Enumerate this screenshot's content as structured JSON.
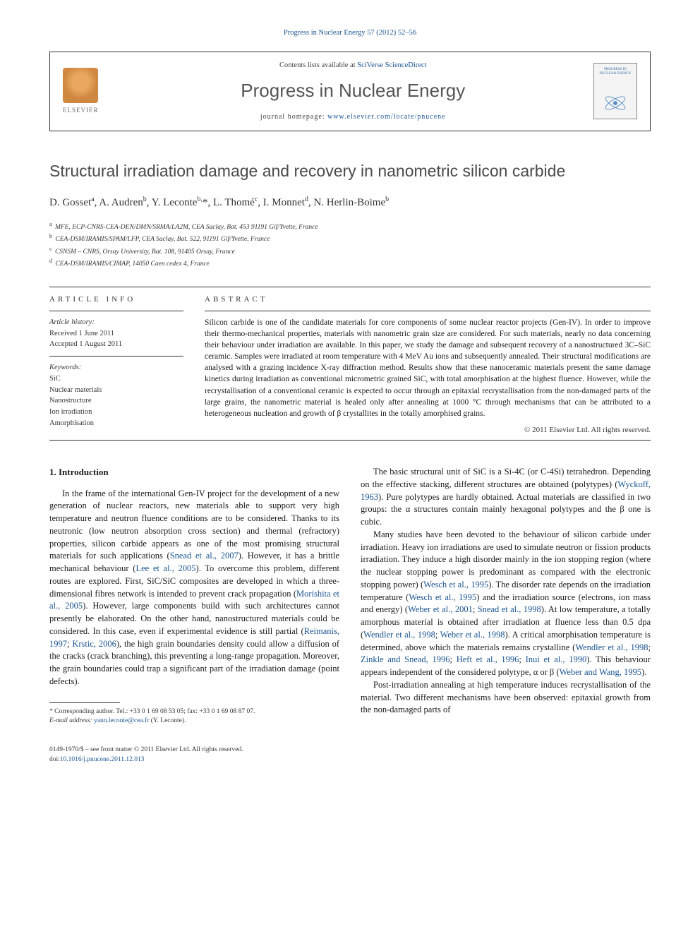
{
  "citation": "Progress in Nuclear Energy 57 (2012) 52–56",
  "header": {
    "publisher": "ELSEVIER",
    "contents_prefix": "Contents lists available at ",
    "contents_link": "SciVerse ScienceDirect",
    "journal": "Progress in Nuclear Energy",
    "homepage_prefix": "journal homepage: ",
    "homepage_url": "www.elsevier.com/locate/pnucene",
    "cover_title": "PROGRESS IN NUCLEAR ENERGY"
  },
  "title": "Structural irradiation damage and recovery in nanometric silicon carbide",
  "authors_html": "D. Gosset<sup>a</sup>, A. Audren<sup>b</sup>, Y. Leconte<sup>b,</sup>*, L. Thomé<sup>c</sup>, I. Monnet<sup>d</sup>, N. Herlin-Boime<sup>b</sup>",
  "affiliations": [
    {
      "sup": "a",
      "text": "MFE, ECP-CNRS-CEA-DEN/DMN/SRMA/LA2M, CEA Saclay, Bat. 453 91191 Gif/Yvette, France"
    },
    {
      "sup": "b",
      "text": "CEA-DSM/IRAMIS/SPAM/LFP, CEA Saclay, Bat. 522, 91191 Gif/Yvette, France"
    },
    {
      "sup": "c",
      "text": "CSNSM – CNRS, Orsay University, Bat. 108, 91405 Orsay, France"
    },
    {
      "sup": "d",
      "text": "CEA-DSM/IRAMIS/CIMAP, 14050 Caen cedex 4, France"
    }
  ],
  "article_info": {
    "head": "ARTICLE INFO",
    "history_label": "Article history:",
    "received": "Received 1 June 2011",
    "accepted": "Accepted 1 August 2011",
    "keywords_label": "Keywords:",
    "keywords": [
      "SiC",
      "Nuclear materials",
      "Nanostructure",
      "Ion irradiation",
      "Amorphisation"
    ]
  },
  "abstract": {
    "head": "ABSTRACT",
    "text": "Silicon carbide is one of the candidate materials for core components of some nuclear reactor projects (Gen-IV). In order to improve their thermo-mechanical properties, materials with nanometric grain size are considered. For such materials, nearly no data concerning their behaviour under irradiation are available. In this paper, we study the damage and subsequent recovery of a nanostructured 3C–SiC ceramic. Samples were irradiated at room temperature with 4 MeV Au ions and subsequently annealed. Their structural modifications are analysed with a grazing incidence X-ray diffraction method. Results show that these nanoceramic materials present the same damage kinetics during irradiation as conventional micrometric grained SiC, with total amorphisation at the highest fluence. However, while the recrystallisation of a conventional ceramic is expected to occur through an epitaxial recrystallisation from the non-damaged parts of the large grains, the nanometric material is healed only after annealing at 1000 °C through mechanisms that can be attributed to a heterogeneous nucleation and growth of β crystallites in the totally amorphised grains.",
    "copyright": "© 2011 Elsevier Ltd. All rights reserved."
  },
  "sections": {
    "intro_head": "1. Introduction"
  },
  "body": {
    "p1a": "In the frame of the international Gen-IV project for the development of a new generation of nuclear reactors, new materials able to support very high temperature and neutron fluence conditions are to be considered. Thanks to its neutronic (low neutron absorption cross section) and thermal (refractory) properties, silicon carbide appears as one of the most promising structural materials for such applications (",
    "p1_ref1": "Snead et al., 2007",
    "p1b": "). However, it has a brittle mechanical behaviour (",
    "p1_ref2": "Lee et al., 2005",
    "p1c": "). To overcome this problem, different routes are explored. First, SiC/SiC composites are developed in which a three-dimensional fibres network is intended to prevent crack propagation (",
    "p1_ref3": "Morishita et al., 2005",
    "p1d": "). However, large components build with such architectures cannot presently be elaborated. On the other hand, nanostructured materials could be considered. In this case, even if experimental evidence is still partial (",
    "p1_ref4": "Reimanis, 1997",
    "p1_semi1": "; ",
    "p1_ref5": "Krstic, 2006",
    "p1e": "), the high grain boundaries density could allow a diffusion of the cracks (crack branching), this preventing a long-range propagation. Moreover, the grain boundaries could trap a significant part of the irradiation damage (point defects).",
    "p2a": "The basic structural unit of SiC is a Si-4C (or C-4Si) tetrahedron. Depending on the effective stacking, different structures are obtained (polytypes) (",
    "p2_ref1": "Wyckoff, 1963",
    "p2b": "). Pure polytypes are hardly obtained. Actual materials are classified in two groups: the α structures contain mainly hexagonal polytypes and the β one is cubic.",
    "p3a": "Many studies have been devoted to the behaviour of silicon carbide under irradiation. Heavy ion irradiations are used to simulate neutron or fission products irradiation. They induce a high disorder mainly in the ion stopping region (where the nuclear stopping power is predominant as compared with the electronic stopping power) (",
    "p3_ref1": "Wesch et al., 1995",
    "p3b": "). The disorder rate depends on the irradiation temperature (",
    "p3_ref2": "Wesch et al., 1995",
    "p3c": ") and the irradiation source (electrons, ion mass and energy) (",
    "p3_ref3": "Weber et al., 2001",
    "p3_semi1": "; ",
    "p3_ref4": "Snead et al., 1998",
    "p3d": "). At low temperature, a totally amorphous material is obtained after irradiation at fluence less than 0.5 dpa (",
    "p3_ref5": "Wendler et al., 1998",
    "p3_semi2": "; ",
    "p3_ref6": "Weber et al., 1998",
    "p3e": "). A critical amorphisation temperature is determined, above which the materials remains crystalline (",
    "p3_ref7": "Wendler et al., 1998",
    "p3_semi3": "; ",
    "p3_ref8": "Zinkle and Snead, 1996",
    "p3_semi4": "; ",
    "p3_ref9": "Heft et al., 1996",
    "p3_semi5": "; ",
    "p3_ref10": "Inui et al., 1990",
    "p3f": "). This behaviour appears independent of the considered polytype, α or β (",
    "p3_ref11": "Weber and Wang, 1995",
    "p3g": ").",
    "p4": "Post-irradiation annealing at high temperature induces recrystallisation of the material. Two different mechanisms have been observed: epitaxial growth from the non-damaged parts of"
  },
  "footnote": {
    "corr_label": "* Corresponding author. Tel.: +33 0 1 69 08 53 05; fax: +33 0 1 69 08 87 07.",
    "email_label": "E-mail address: ",
    "email": "yann.leconte@cea.fr",
    "email_suffix": " (Y. Leconte)."
  },
  "bottom": {
    "issn": "0149-1970/$ – see front matter © 2011 Elsevier Ltd. All rights reserved.",
    "doi_label": "doi:",
    "doi": "10.1016/j.pnucene.2011.12.013"
  },
  "colors": {
    "link": "#1a5490",
    "text": "#1a1a1a",
    "heading_grey": "#4a4a4a"
  }
}
